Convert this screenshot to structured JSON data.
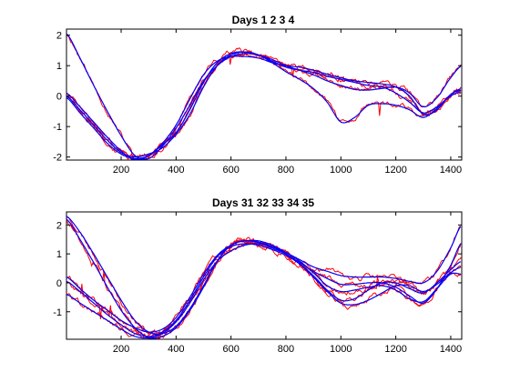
{
  "colors": {
    "raw": "#ff0000",
    "smooth": "#0000ff",
    "axis": "#000000",
    "background": "#ffffff"
  },
  "chart_data": [
    {
      "type": "line",
      "title": "Days 1  2  3  4",
      "xlim": [
        1,
        1440
      ],
      "ylim": [
        -2.1,
        2.2
      ],
      "xticks": [
        200,
        400,
        600,
        800,
        1000,
        1200,
        1400
      ],
      "yticks": [
        -2,
        -1,
        0,
        1,
        2
      ],
      "xticklabels": [
        "200",
        "400",
        "600",
        "800",
        "1000",
        "1200",
        "1400"
      ],
      "yticklabels": [
        "-2",
        "-1",
        "0",
        "1",
        "2"
      ],
      "x": [
        1,
        50,
        100,
        150,
        200,
        250,
        300,
        350,
        400,
        450,
        500,
        550,
        600,
        650,
        700,
        750,
        800,
        850,
        900,
        950,
        1000,
        1050,
        1100,
        1150,
        1200,
        1250,
        1300,
        1350,
        1400,
        1440
      ],
      "series": [
        {
          "style": "smooth",
          "values": [
            2.05,
            1.25,
            0.35,
            -0.5,
            -1.3,
            -1.95,
            -2.05,
            -1.65,
            -1.05,
            -0.3,
            0.5,
            1.0,
            1.3,
            1.4,
            1.35,
            1.2,
            1.0,
            0.85,
            0.7,
            0.5,
            0.35,
            0.22,
            0.2,
            0.25,
            0.3,
            0.1,
            -0.35,
            -0.05,
            0.6,
            1.0
          ]
        },
        {
          "style": "smooth",
          "values": [
            0.1,
            -0.35,
            -0.85,
            -1.35,
            -1.8,
            -2.1,
            -1.95,
            -1.55,
            -0.95,
            -0.1,
            0.7,
            1.15,
            1.3,
            1.3,
            1.25,
            1.1,
            1.0,
            0.95,
            0.85,
            0.72,
            0.6,
            0.5,
            0.45,
            0.4,
            0.3,
            0.0,
            -0.6,
            -0.45,
            0.05,
            0.2
          ]
        },
        {
          "style": "smooth",
          "values": [
            0.0,
            -0.45,
            -0.95,
            -1.45,
            -1.85,
            -2.0,
            -1.9,
            -1.7,
            -1.25,
            -0.6,
            0.3,
            1.0,
            1.35,
            1.45,
            1.35,
            1.1,
            0.8,
            0.55,
            0.25,
            -0.2,
            -0.85,
            -0.7,
            -0.3,
            -0.25,
            -0.3,
            -0.45,
            -0.7,
            -0.4,
            0.05,
            0.25
          ]
        },
        {
          "style": "smooth",
          "values": [
            -0.05,
            -0.55,
            -1.05,
            -1.55,
            -1.9,
            -2.05,
            -1.95,
            -1.6,
            -1.2,
            -0.45,
            0.45,
            1.1,
            1.4,
            1.45,
            1.35,
            1.15,
            0.95,
            0.85,
            0.78,
            0.65,
            0.55,
            0.45,
            0.35,
            0.3,
            0.1,
            -0.2,
            -0.55,
            -0.35,
            0.0,
            0.15
          ]
        }
      ],
      "raw_noise": 0.07,
      "raw_seed": 11
    },
    {
      "type": "line",
      "title": "Days 31  32  33  34  35",
      "xlim": [
        1,
        1440
      ],
      "ylim": [
        -1.95,
        2.45
      ],
      "xticks": [
        200,
        400,
        600,
        800,
        1000,
        1200,
        1400
      ],
      "yticks": [
        -1,
        0,
        1,
        2
      ],
      "xticklabels": [
        "200",
        "400",
        "600",
        "800",
        "1000",
        "1200",
        "1400"
      ],
      "yticklabels": [
        "-1",
        "0",
        "1",
        "2"
      ],
      "x": [
        1,
        50,
        100,
        150,
        200,
        250,
        300,
        350,
        400,
        450,
        500,
        550,
        600,
        650,
        700,
        750,
        800,
        850,
        900,
        950,
        1000,
        1050,
        1100,
        1150,
        1200,
        1250,
        1300,
        1350,
        1400,
        1440
      ],
      "series": [
        {
          "style": "smooth",
          "values": [
            2.3,
            1.75,
            1.0,
            0.2,
            -0.6,
            -1.3,
            -1.7,
            -1.75,
            -1.5,
            -0.9,
            -0.1,
            0.75,
            1.3,
            1.45,
            1.45,
            1.3,
            1.05,
            0.8,
            0.55,
            0.4,
            0.25,
            0.2,
            0.2,
            0.2,
            0.15,
            0.05,
            0.0,
            0.4,
            1.2,
            2.0
          ]
        },
        {
          "style": "smooth",
          "values": [
            2.2,
            1.5,
            0.7,
            -0.15,
            -0.95,
            -1.55,
            -1.9,
            -1.85,
            -1.55,
            -0.95,
            -0.15,
            0.75,
            1.3,
            1.45,
            1.4,
            1.25,
            1.0,
            0.7,
            0.4,
            0.15,
            -0.05,
            -0.05,
            0.0,
            0.0,
            -0.15,
            -0.45,
            -0.7,
            -0.2,
            0.6,
            1.4
          ]
        },
        {
          "style": "smooth",
          "values": [
            0.2,
            -0.2,
            -0.6,
            -0.95,
            -1.3,
            -1.55,
            -1.7,
            -1.6,
            -1.2,
            -0.5,
            0.3,
            0.95,
            1.3,
            1.45,
            1.4,
            1.2,
            1.0,
            0.65,
            0.2,
            -0.3,
            -0.7,
            -0.75,
            -0.6,
            -0.35,
            -0.1,
            -0.1,
            -0.3,
            -0.05,
            0.35,
            0.55
          ]
        },
        {
          "style": "smooth",
          "values": [
            -0.4,
            -0.7,
            -1.0,
            -1.3,
            -1.6,
            -1.85,
            -1.9,
            -1.75,
            -1.35,
            -0.7,
            0.1,
            0.75,
            1.1,
            1.3,
            1.35,
            1.25,
            1.05,
            0.75,
            0.35,
            -0.1,
            -0.3,
            -0.25,
            -0.15,
            -0.1,
            -0.25,
            -0.55,
            -0.65,
            -0.2,
            0.3,
            0.3
          ]
        },
        {
          "style": "smooth",
          "values": [
            0.05,
            -0.3,
            -0.7,
            -1.1,
            -1.45,
            -1.75,
            -1.85,
            -1.7,
            -1.3,
            -0.6,
            0.2,
            0.9,
            1.25,
            1.35,
            1.3,
            1.15,
            0.95,
            0.65,
            0.25,
            -0.25,
            -0.6,
            -0.55,
            -0.25,
            0.0,
            0.0,
            -0.2,
            -0.35,
            0.0,
            0.45,
            0.75
          ]
        }
      ],
      "raw_noise": 0.08,
      "raw_seed": 23
    }
  ]
}
